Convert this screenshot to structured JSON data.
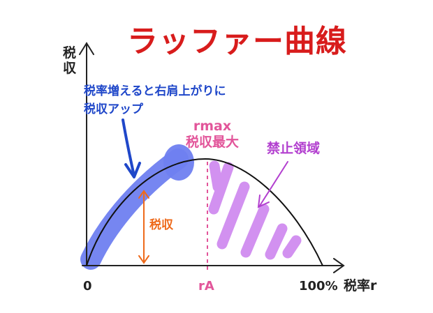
{
  "title": "ラッファー曲線",
  "y_axis_label": "税収",
  "x_axis_label": "税率r",
  "x_ticks": {
    "zero": "0",
    "ra": "rA",
    "hundred": "100%"
  },
  "annotations": {
    "blue_note": "税率増えると右肩上がりに\n税収アップ",
    "rmax_note": "rmax\n税収最大",
    "forbidden_zone": "禁止領域",
    "revenue_arrow": "税収"
  },
  "colors": {
    "title": "#d81c1c",
    "blue": "#1f47c9",
    "blue_band": "#6f7ff0",
    "pink": "#e2559a",
    "purple": "#b23fcf",
    "hatch": "#d08cf0",
    "orange": "#ee6a1b",
    "axis": "#222222"
  }
}
